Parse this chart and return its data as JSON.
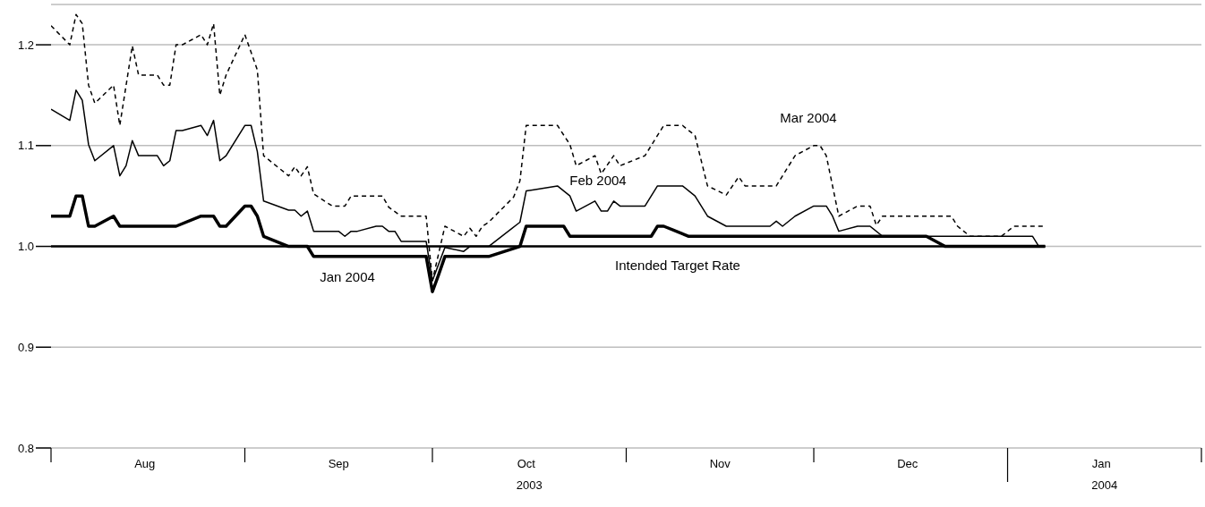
{
  "chart_data": {
    "type": "line",
    "xlim": [
      "2003-08-01",
      "2004-02-01"
    ],
    "xticks": [
      {
        "value": "2003-08-01",
        "label": null
      },
      {
        "value": "2003-08-16",
        "label": "Aug"
      },
      {
        "value": "2003-09-01",
        "label": null
      },
      {
        "value": "2003-09-16",
        "label": "Sep"
      },
      {
        "value": "2003-10-01",
        "label": null
      },
      {
        "value": "2003-10-16",
        "label": "Oct"
      },
      {
        "value": "2003-11-01",
        "label": null
      },
      {
        "value": "2003-11-16",
        "label": "Nov"
      },
      {
        "value": "2003-12-01",
        "label": null
      },
      {
        "value": "2003-12-16",
        "label": "Dec"
      },
      {
        "value": "2004-01-01",
        "label": null
      },
      {
        "value": "2004-01-16",
        "label": "Jan"
      },
      {
        "value": "2004-02-01",
        "label": null
      }
    ],
    "ylim": [
      0.8,
      1.24
    ],
    "yticks": [
      0.8,
      0.9,
      {
        "value": 1.0,
        "label": "1.0"
      },
      1.1,
      1.2
    ],
    "grid": "y",
    "marker": "none",
    "annotations": [
      "2003",
      "2004"
    ],
    "series": [
      {
        "name": "Intended Target Rate",
        "color": "#000000",
        "line_style": "solid",
        "x": [
          "2003-08-01",
          "2004-01-07"
        ],
        "values": [
          1.0,
          1.0
        ]
      },
      {
        "name": "Jan 2004",
        "color": "#000000",
        "line_style": "solid",
        "x": [
          "2003-08-01",
          "2003-08-04",
          "2003-08-05",
          "2003-08-06",
          "2003-08-07",
          "2003-08-08",
          "2003-08-11",
          "2003-08-12",
          "2003-08-21",
          "2003-08-25",
          "2003-08-27",
          "2003-08-28",
          "2003-08-29",
          "2003-09-01",
          "2003-09-02",
          "2003-09-03",
          "2003-09-04",
          "2003-09-08",
          "2003-09-11",
          "2003-09-12",
          "2003-09-30",
          "2003-10-01",
          "2003-10-02",
          "2003-10-03",
          "2003-10-10",
          "2003-10-15",
          "2003-10-16",
          "2003-10-22",
          "2003-10-23",
          "2003-11-05",
          "2003-11-06",
          "2003-11-07",
          "2003-11-11",
          "2003-12-19",
          "2003-12-22",
          "2004-01-07"
        ],
        "values": [
          1.03,
          1.03,
          1.05,
          1.05,
          1.02,
          1.02,
          1.03,
          1.02,
          1.02,
          1.03,
          1.03,
          1.02,
          1.02,
          1.04,
          1.04,
          1.03,
          1.01,
          1.0,
          1.0,
          0.99,
          0.99,
          0.955,
          0.972,
          0.99,
          0.99,
          1.0,
          1.02,
          1.02,
          1.01,
          1.01,
          1.02,
          1.02,
          1.01,
          1.01,
          1.0,
          1.0
        ]
      },
      {
        "name": "Feb 2004",
        "color": "#000000",
        "line_style": "solid",
        "x": [
          "2003-08-01",
          "2003-08-04",
          "2003-08-05",
          "2003-08-06",
          "2003-08-07",
          "2003-08-08",
          "2003-08-11",
          "2003-08-12",
          "2003-08-13",
          "2003-08-14",
          "2003-08-15",
          "2003-08-18",
          "2003-08-19",
          "2003-08-20",
          "2003-08-21",
          "2003-08-22",
          "2003-08-25",
          "2003-08-26",
          "2003-08-27",
          "2003-08-28",
          "2003-08-29",
          "2003-09-01",
          "2003-09-02",
          "2003-09-03",
          "2003-09-04",
          "2003-09-08",
          "2003-09-09",
          "2003-09-10",
          "2003-09-11",
          "2003-09-12",
          "2003-09-16",
          "2003-09-17",
          "2003-09-18",
          "2003-09-19",
          "2003-09-22",
          "2003-09-23",
          "2003-09-24",
          "2003-09-25",
          "2003-09-26",
          "2003-09-30",
          "2003-10-01",
          "2003-10-03",
          "2003-10-06",
          "2003-10-07",
          "2003-10-10",
          "2003-10-15",
          "2003-10-16",
          "2003-10-17",
          "2003-10-21",
          "2003-10-23",
          "2003-10-24",
          "2003-10-27",
          "2003-10-28",
          "2003-10-29",
          "2003-10-30",
          "2003-10-31",
          "2003-11-04",
          "2003-11-06",
          "2003-11-10",
          "2003-11-12",
          "2003-11-14",
          "2003-11-17",
          "2003-11-24",
          "2003-11-25",
          "2003-11-26",
          "2003-11-28",
          "2003-12-01",
          "2003-12-03",
          "2003-12-04",
          "2003-12-05",
          "2003-12-08",
          "2003-12-10",
          "2003-12-12",
          "2004-01-05",
          "2004-01-06",
          "2004-01-07"
        ],
        "values": [
          1.136,
          1.125,
          1.155,
          1.145,
          1.101,
          1.085,
          1.1,
          1.07,
          1.08,
          1.105,
          1.09,
          1.09,
          1.08,
          1.085,
          1.115,
          1.115,
          1.12,
          1.11,
          1.125,
          1.085,
          1.09,
          1.12,
          1.12,
          1.094,
          1.045,
          1.036,
          1.036,
          1.03,
          1.035,
          1.015,
          1.015,
          1.01,
          1.015,
          1.015,
          1.02,
          1.02,
          1.015,
          1.015,
          1.005,
          1.005,
          0.966,
          0.999,
          0.995,
          1.0,
          1.0,
          1.024,
          1.055,
          1.056,
          1.06,
          1.05,
          1.035,
          1.045,
          1.035,
          1.035,
          1.045,
          1.04,
          1.04,
          1.06,
          1.06,
          1.05,
          1.03,
          1.02,
          1.02,
          1.025,
          1.02,
          1.03,
          1.04,
          1.04,
          1.03,
          1.015,
          1.02,
          1.02,
          1.01,
          1.01,
          1.0,
          1.0
        ]
      },
      {
        "name": "Mar 2004",
        "color": "#000000",
        "line_style": "dashed",
        "x": [
          "2003-08-01",
          "2003-08-04",
          "2003-08-05",
          "2003-08-06",
          "2003-08-07",
          "2003-08-08",
          "2003-08-11",
          "2003-08-12",
          "2003-08-14",
          "2003-08-15",
          "2003-08-18",
          "2003-08-19",
          "2003-08-20",
          "2003-08-21",
          "2003-08-22",
          "2003-08-25",
          "2003-08-26",
          "2003-08-27",
          "2003-08-28",
          "2003-08-29",
          "2003-09-01",
          "2003-09-03",
          "2003-09-04",
          "2003-09-08",
          "2003-09-09",
          "2003-09-10",
          "2003-09-11",
          "2003-09-12",
          "2003-09-15",
          "2003-09-17",
          "2003-09-18",
          "2003-09-23",
          "2003-09-24",
          "2003-09-26",
          "2003-09-30",
          "2003-10-01",
          "2003-10-03",
          "2003-10-06",
          "2003-10-07",
          "2003-10-08",
          "2003-10-09",
          "2003-10-10",
          "2003-10-14",
          "2003-10-15",
          "2003-10-16",
          "2003-10-21",
          "2003-10-23",
          "2003-10-24",
          "2003-10-27",
          "2003-10-28",
          "2003-10-30",
          "2003-10-31",
          "2003-11-04",
          "2003-11-07",
          "2003-11-10",
          "2003-11-12",
          "2003-11-14",
          "2003-11-17",
          "2003-11-19",
          "2003-11-20",
          "2003-11-25",
          "2003-11-28",
          "2003-12-01",
          "2003-12-02",
          "2003-12-03",
          "2003-12-05",
          "2003-12-08",
          "2003-12-10",
          "2003-12-11",
          "2003-12-12",
          "2003-12-23",
          "2003-12-24",
          "2003-12-26",
          "2003-12-31",
          "2004-01-02",
          "2004-01-07"
        ],
        "values": [
          1.219,
          1.2,
          1.23,
          1.221,
          1.16,
          1.142,
          1.16,
          1.12,
          1.199,
          1.17,
          1.17,
          1.16,
          1.16,
          1.2,
          1.2,
          1.21,
          1.2,
          1.221,
          1.15,
          1.17,
          1.21,
          1.175,
          1.09,
          1.07,
          1.079,
          1.07,
          1.079,
          1.052,
          1.04,
          1.04,
          1.05,
          1.05,
          1.039,
          1.03,
          1.03,
          0.966,
          1.02,
          1.01,
          1.018,
          1.01,
          1.02,
          1.024,
          1.049,
          1.065,
          1.12,
          1.12,
          1.101,
          1.08,
          1.09,
          1.072,
          1.09,
          1.08,
          1.09,
          1.12,
          1.12,
          1.11,
          1.06,
          1.051,
          1.069,
          1.06,
          1.06,
          1.09,
          1.1,
          1.1,
          1.09,
          1.03,
          1.04,
          1.04,
          1.021,
          1.03,
          1.03,
          1.02,
          1.01,
          1.01,
          1.02,
          1.02
        ]
      }
    ]
  }
}
